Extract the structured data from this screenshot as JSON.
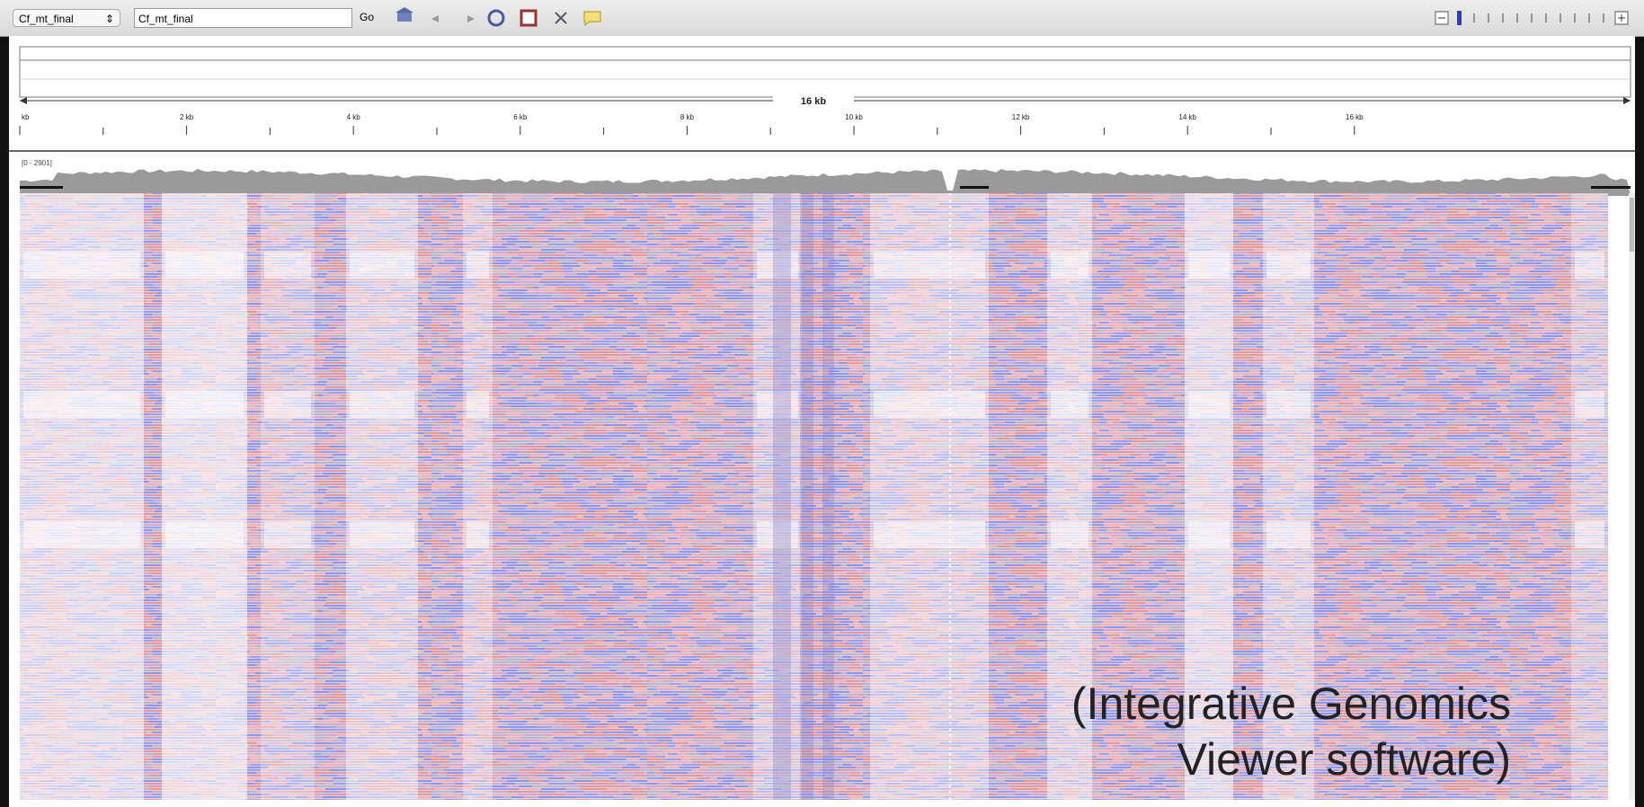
{
  "toolbar": {
    "genome": "Cf_mt_final",
    "locus": "Cf_mt_final",
    "go": "Go"
  },
  "ruler": {
    "span": "16 kb",
    "ticks": [
      "kb",
      "2 kb",
      "4 kb",
      "6 kb",
      "8 kb",
      "10 kb",
      "12 kb",
      "14 kb",
      "16 kb"
    ]
  },
  "coverage": {
    "range": "[0 - 2901]"
  },
  "caption": {
    "lines": [
      "(Integrative Genomics",
      "Viewer software)"
    ]
  }
}
